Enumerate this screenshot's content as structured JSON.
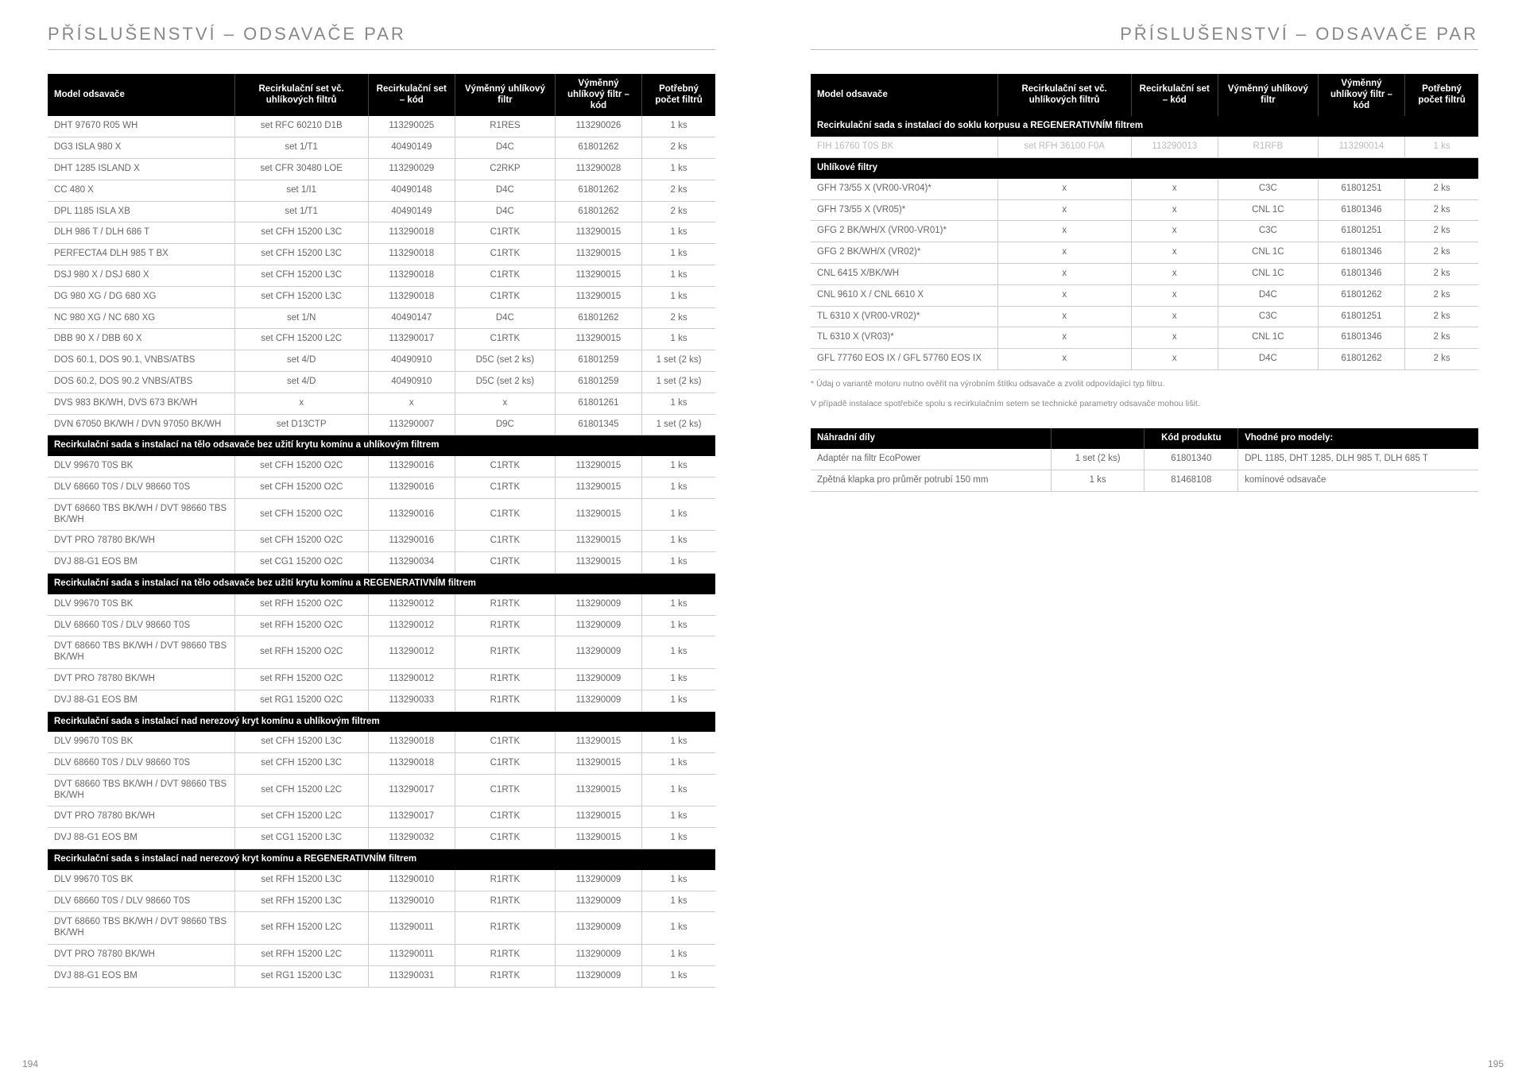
{
  "title_left": "PŘÍSLUŠENSTVÍ – ODSAVAČE PAR",
  "title_right": "PŘÍSLUŠENSTVÍ – ODSAVAČE PAR",
  "page_num_left": "194",
  "page_num_right": "195",
  "headers": {
    "model": "Model odsavače",
    "set": "Recirkulační set vč. uhlíkových filtrů",
    "setcode": "Recirkulační set – kód",
    "filter": "Výměnný uhlíkový filtr",
    "filtercode": "Výměnný uhlíkový filtr – kód",
    "count": "Potřebný počet filtrů"
  },
  "sections_left": [
    {
      "type": "row",
      "c": [
        "DHT 97670 R05 WH",
        "set RFC 60210 D1B",
        "113290025",
        "R1RES",
        "113290026",
        "1 ks"
      ]
    },
    {
      "type": "row",
      "c": [
        "DG3 ISLA 980 X",
        "set 1/T1",
        "40490149",
        "D4C",
        "61801262",
        "2 ks"
      ]
    },
    {
      "type": "row",
      "c": [
        "DHT 1285 ISLAND X",
        "set CFR 30480 LOE",
        "113290029",
        "C2RKP",
        "113290028",
        "1 ks"
      ]
    },
    {
      "type": "row",
      "c": [
        "CC 480 X",
        "set 1/I1",
        "40490148",
        "D4C",
        "61801262",
        "2 ks"
      ]
    },
    {
      "type": "row",
      "c": [
        "DPL 1185 ISLA XB",
        "set 1/T1",
        "40490149",
        "D4C",
        "61801262",
        "2 ks"
      ]
    },
    {
      "type": "row",
      "c": [
        "DLH 986 T / DLH 686 T",
        "set CFH 15200 L3C",
        "113290018",
        "C1RTK",
        "113290015",
        "1 ks"
      ]
    },
    {
      "type": "row",
      "c": [
        "PERFECTA4 DLH 985 T BX",
        "set CFH 15200 L3C",
        "113290018",
        "C1RTK",
        "113290015",
        "1 ks"
      ]
    },
    {
      "type": "row",
      "c": [
        "DSJ 980 X / DSJ 680 X",
        "set CFH 15200 L3C",
        "113290018",
        "C1RTK",
        "113290015",
        "1 ks"
      ]
    },
    {
      "type": "row",
      "c": [
        "DG 980 XG / DG 680 XG",
        "set CFH 15200 L3C",
        "113290018",
        "C1RTK",
        "113290015",
        "1 ks"
      ]
    },
    {
      "type": "row",
      "c": [
        "NC 980 XG / NC 680 XG",
        "set 1/N",
        "40490147",
        "D4C",
        "61801262",
        "2 ks"
      ]
    },
    {
      "type": "row",
      "c": [
        "DBB 90 X / DBB 60 X",
        "set CFH 15200 L2C",
        "113290017",
        "C1RTK",
        "113290015",
        "1 ks"
      ]
    },
    {
      "type": "row",
      "c": [
        "DOS 60.1, DOS 90.1, VNBS/ATBS",
        "set 4/D",
        "40490910",
        "D5C (set 2 ks)",
        "61801259",
        "1 set (2 ks)"
      ]
    },
    {
      "type": "row",
      "c": [
        "DOS 60.2, DOS 90.2 VNBS/ATBS",
        "set 4/D",
        "40490910",
        "D5C (set 2 ks)",
        "61801259",
        "1 set (2 ks)"
      ]
    },
    {
      "type": "row",
      "c": [
        "DVS 983 BK/WH, DVS 673 BK/WH",
        "x",
        "x",
        "x",
        "61801261",
        "1 ks"
      ]
    },
    {
      "type": "row",
      "c": [
        "DVN 67050 BK/WH / DVN 97050 BK/WH",
        "set D13CTP",
        "113290007",
        "D9C",
        "61801345",
        "1 set (2 ks)"
      ]
    },
    {
      "type": "section",
      "label": "Recirkulační sada s instalací na tělo odsavače bez užití krytu komínu a uhlíkovým filtrem"
    },
    {
      "type": "row",
      "c": [
        "DLV 99670 T0S BK",
        "set CFH 15200 O2C",
        "113290016",
        "C1RTK",
        "113290015",
        "1 ks"
      ]
    },
    {
      "type": "row",
      "c": [
        "DLV 68660 T0S / DLV 98660 T0S",
        "set CFH 15200 O2C",
        "113290016",
        "C1RTK",
        "113290015",
        "1 ks"
      ]
    },
    {
      "type": "row",
      "c": [
        "DVT 68660 TBS BK/WH / DVT 98660 TBS BK/WH",
        "set CFH 15200 O2C",
        "113290016",
        "C1RTK",
        "113290015",
        "1 ks"
      ]
    },
    {
      "type": "row",
      "c": [
        "DVT PRO 78780 BK/WH",
        "set CFH 15200 O2C",
        "113290016",
        "C1RTK",
        "113290015",
        "1 ks"
      ]
    },
    {
      "type": "row",
      "c": [
        "DVJ 88-G1 EOS BM",
        "set CG1 15200 O2C",
        "113290034",
        "C1RTK",
        "113290015",
        "1 ks"
      ]
    },
    {
      "type": "section",
      "label": "Recirkulační sada s instalací na tělo odsavače bez užití krytu komínu a REGENERATIVNÍM filtrem"
    },
    {
      "type": "row",
      "c": [
        "DLV 99670 T0S BK",
        "set RFH 15200 O2C",
        "113290012",
        "R1RTK",
        "113290009",
        "1 ks"
      ]
    },
    {
      "type": "row",
      "c": [
        "DLV 68660 T0S / DLV 98660 T0S",
        "set RFH 15200 O2C",
        "113290012",
        "R1RTK",
        "113290009",
        "1 ks"
      ]
    },
    {
      "type": "row",
      "c": [
        "DVT 68660 TBS BK/WH / DVT 98660 TBS BK/WH",
        "set RFH 15200 O2C",
        "113290012",
        "R1RTK",
        "113290009",
        "1 ks"
      ]
    },
    {
      "type": "row",
      "c": [
        "DVT PRO 78780 BK/WH",
        "set RFH 15200 O2C",
        "113290012",
        "R1RTK",
        "113290009",
        "1 ks"
      ]
    },
    {
      "type": "row",
      "c": [
        "DVJ 88-G1 EOS BM",
        "set RG1 15200 O2C",
        "113290033",
        "R1RTK",
        "113290009",
        "1 ks"
      ]
    },
    {
      "type": "section",
      "label": "Recirkulační sada s instalací nad nerezový kryt komínu a uhlíkovým filtrem"
    },
    {
      "type": "row",
      "c": [
        "DLV 99670 T0S BK",
        "set CFH 15200 L3C",
        "113290018",
        "C1RTK",
        "113290015",
        "1 ks"
      ]
    },
    {
      "type": "row",
      "c": [
        "DLV 68660 T0S / DLV 98660 T0S",
        "set CFH 15200 L3C",
        "113290018",
        "C1RTK",
        "113290015",
        "1 ks"
      ]
    },
    {
      "type": "row",
      "c": [
        "DVT 68660 TBS BK/WH / DVT 98660 TBS BK/WH",
        "set CFH 15200 L2C",
        "113290017",
        "C1RTK",
        "113290015",
        "1 ks"
      ]
    },
    {
      "type": "row",
      "c": [
        "DVT PRO 78780 BK/WH",
        "set CFH 15200 L2C",
        "113290017",
        "C1RTK",
        "113290015",
        "1 ks"
      ]
    },
    {
      "type": "row",
      "c": [
        "DVJ 88-G1 EOS BM",
        "set CG1 15200 L3C",
        "113290032",
        "C1RTK",
        "113290015",
        "1 ks"
      ]
    },
    {
      "type": "section",
      "label": "Recirkulační sada s instalací nad nerezový kryt komínu a REGENERATIVNÍM filtrem"
    },
    {
      "type": "row",
      "c": [
        "DLV 99670 T0S BK",
        "set RFH 15200 L3C",
        "113290010",
        "R1RTK",
        "113290009",
        "1 ks"
      ]
    },
    {
      "type": "row",
      "c": [
        "DLV 68660 T0S / DLV 98660 T0S",
        "set RFH 15200 L3C",
        "113290010",
        "R1RTK",
        "113290009",
        "1 ks"
      ]
    },
    {
      "type": "row",
      "c": [
        "DVT 68660 TBS BK/WH / DVT 98660 TBS BK/WH",
        "set RFH 15200 L2C",
        "113290011",
        "R1RTK",
        "113290009",
        "1 ks"
      ]
    },
    {
      "type": "row",
      "c": [
        "DVT PRO 78780 BK/WH",
        "set RFH 15200 L2C",
        "113290011",
        "R1RTK",
        "113290009",
        "1 ks"
      ]
    },
    {
      "type": "row",
      "c": [
        "DVJ 88-G1 EOS BM",
        "set RG1 15200 L3C",
        "113290031",
        "R1RTK",
        "113290009",
        "1 ks"
      ]
    }
  ],
  "sections_right": [
    {
      "type": "section",
      "label": "Recirkulační sada s instalací do soklu korpusu a REGENERATIVNÍM filtrem"
    },
    {
      "type": "row",
      "faded": true,
      "c": [
        "FIH 16760 T0S BK",
        "set RFH 36100 F0A",
        "113290013",
        "R1RFB",
        "113290014",
        "1 ks"
      ]
    },
    {
      "type": "section",
      "label": "Uhlíkové filtry"
    },
    {
      "type": "row",
      "c": [
        "GFH 73/55 X (VR00-VR04)*",
        "x",
        "x",
        "C3C",
        "61801251",
        "2 ks"
      ]
    },
    {
      "type": "row",
      "c": [
        "GFH 73/55 X (VR05)*",
        "x",
        "x",
        "CNL 1C",
        "61801346",
        "2 ks"
      ]
    },
    {
      "type": "row",
      "c": [
        "GFG 2 BK/WH/X  (VR00-VR01)*",
        "x",
        "x",
        "C3C",
        "61801251",
        "2 ks"
      ]
    },
    {
      "type": "row",
      "c": [
        "GFG 2 BK/WH/X  (VR02)*",
        "x",
        "x",
        "CNL 1C",
        "61801346",
        "2 ks"
      ]
    },
    {
      "type": "row",
      "c": [
        "CNL 6415 X/BK/WH",
        "x",
        "x",
        "CNL 1C",
        "61801346",
        "2 ks"
      ]
    },
    {
      "type": "row",
      "c": [
        "CNL 9610 X / CNL 6610 X",
        "x",
        "x",
        "D4C",
        "61801262",
        "2 ks"
      ]
    },
    {
      "type": "row",
      "c": [
        "TL 6310 X (VR00-VR02)*",
        "x",
        "x",
        "C3C",
        "61801251",
        "2 ks"
      ]
    },
    {
      "type": "row",
      "c": [
        "TL 6310 X (VR03)*",
        "x",
        "x",
        "CNL 1C",
        "61801346",
        "2 ks"
      ]
    },
    {
      "type": "row",
      "c": [
        "GFL 77760 EOS IX / GFL 57760 EOS IX",
        "x",
        "x",
        "D4C",
        "61801262",
        "2 ks"
      ]
    }
  ],
  "footnote1": "* Údaj o variantě motoru nutno ověřit na výrobním štítku odsavače  a zvolit odpovídající typ filtru.",
  "footnote2": "V případě instalace spotřebiče spolu s recirkulačním setem se technické parametry odsavače mohou lišit.",
  "parts_headers": {
    "name": "Náhradní díly",
    "qty": "",
    "code": "Kód produktu",
    "models": "Vhodné pro modely:"
  },
  "parts_rows": [
    {
      "c": [
        "Adaptér na filtr EcoPower",
        "1 set (2 ks)",
        "61801340",
        "DPL 1185, DHT 1285, DLH 985 T, DLH 685 T"
      ]
    },
    {
      "c": [
        "Zpětná klapka pro průměr potrubí 150 mm",
        "1 ks",
        "81468108",
        "komínové odsavače"
      ]
    }
  ]
}
